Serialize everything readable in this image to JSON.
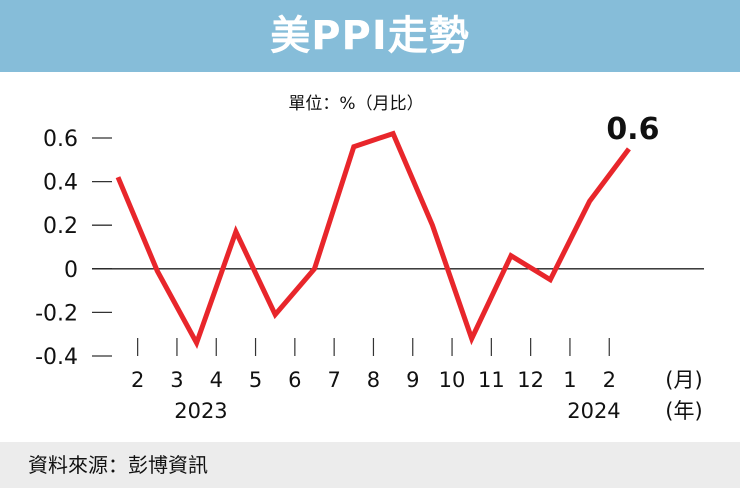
{
  "title": "美PPI走勢",
  "source": "資料來源：彭博資訊",
  "chart_data": {
    "type": "line",
    "unit_label": "單位：%（月比）",
    "x_month_labels": [
      "2",
      "3",
      "4",
      "5",
      "6",
      "7",
      "8",
      "9",
      "10",
      "11",
      "12",
      "1",
      "2"
    ],
    "x_year_labels": [
      {
        "text": "2023",
        "under": 1
      },
      {
        "text": "2024",
        "under": 11
      }
    ],
    "x_unit_month": "(月)",
    "x_unit_year": "(年)",
    "x": [
      "2023-01",
      "2023-02",
      "2023-03",
      "2023-04",
      "2023-05",
      "2023-06",
      "2023-07",
      "2023-08",
      "2023-09",
      "2023-10",
      "2023-11",
      "2023-12",
      "2024-01",
      "2024-02"
    ],
    "series": [
      {
        "values": [
          0.42,
          -0.01,
          -0.34,
          0.17,
          -0.21,
          0.0,
          0.56,
          0.62,
          0.2,
          -0.32,
          0.06,
          -0.05,
          0.31,
          0.55
        ]
      }
    ],
    "yticks": [
      0.6,
      0.4,
      0.2,
      0,
      -0.2,
      -0.4
    ],
    "ytick_labels": [
      "0.6",
      "0.4",
      "0.2",
      "0",
      "-0.2",
      "-0.4"
    ],
    "ylim": [
      -0.4,
      0.6
    ],
    "end_label": "0.6",
    "colors": {
      "line": "#e8262b",
      "zero_line": "#222222",
      "text": "#111111"
    }
  }
}
